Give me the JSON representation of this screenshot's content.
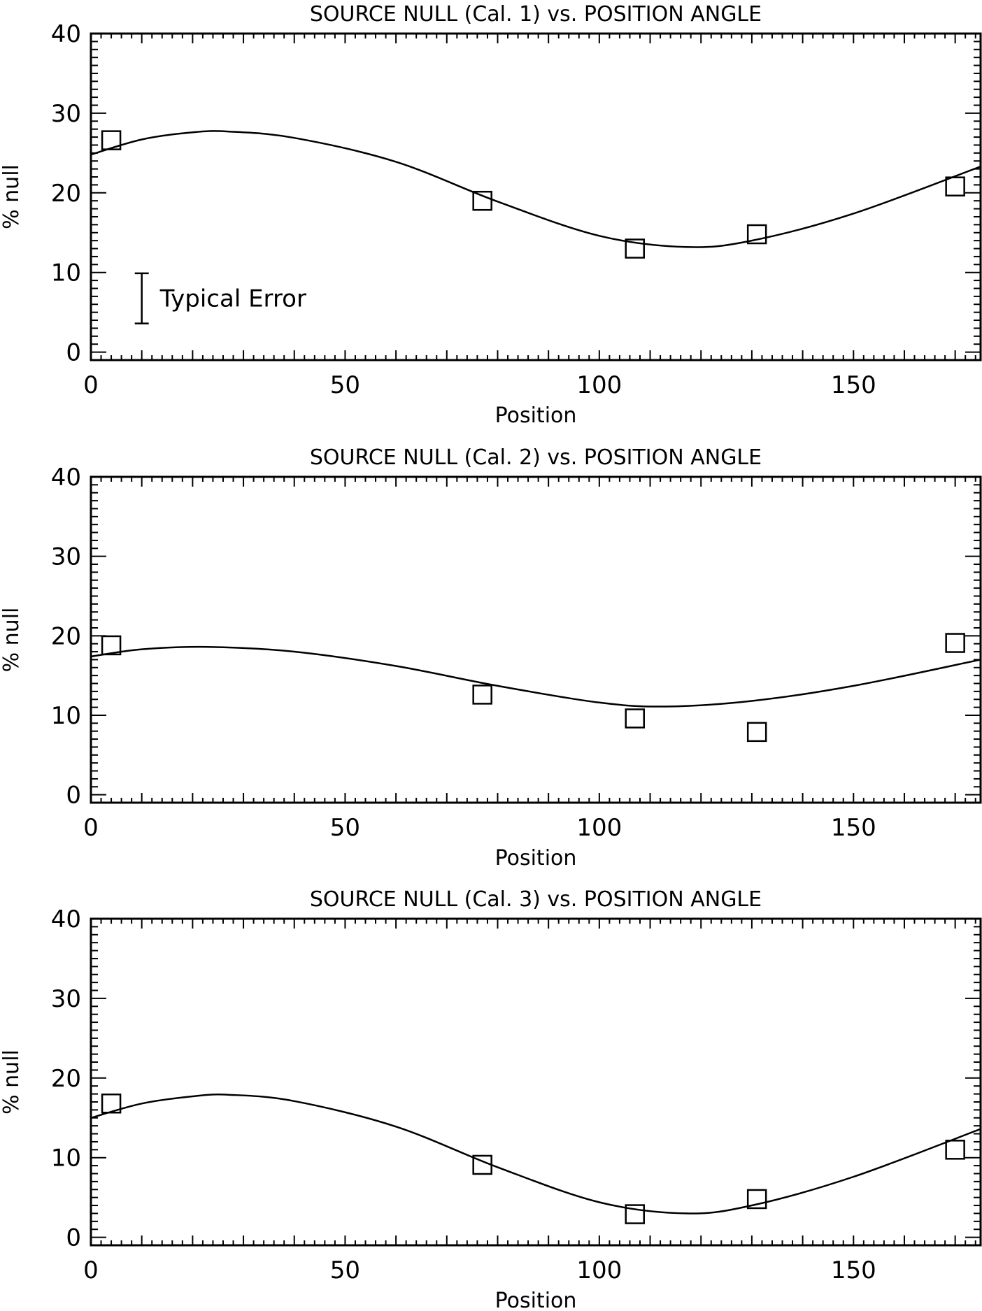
{
  "chart_data": [
    {
      "type": "scatter",
      "title": "SOURCE NULL (Cal. 1) vs. POSITION ANGLE",
      "xlabel": "Position",
      "ylabel": "% null",
      "xlim": [
        0,
        175
      ],
      "ylim": [
        -1,
        40
      ],
      "xticks": [
        0,
        50,
        100,
        150
      ],
      "xtick_labels": [
        "0",
        "50",
        "100",
        "150"
      ],
      "yticks": [
        0,
        10,
        20,
        30,
        40
      ],
      "ytick_labels": [
        "0",
        "10",
        "20",
        "30",
        "40"
      ],
      "series": [
        {
          "kind": "points",
          "marker": "open-square",
          "x": [
            4,
            77,
            107,
            131,
            170
          ],
          "y": [
            26.6,
            19.0,
            13.0,
            14.8,
            20.8
          ]
        },
        {
          "kind": "fit-curve",
          "x": [
            0,
            10,
            20,
            27,
            40,
            60,
            80,
            100,
            117,
            130,
            150,
            175
          ],
          "y": [
            24.8,
            26.7,
            27.6,
            27.7,
            26.9,
            23.9,
            18.9,
            14.6,
            13.2,
            14.0,
            17.4,
            23.3
          ]
        }
      ],
      "annotations": [
        {
          "text": "Typical Error",
          "kind": "error-bar",
          "x": 10,
          "ylow": 3.6,
          "yhigh": 9.9
        }
      ]
    },
    {
      "type": "scatter",
      "title": "SOURCE NULL (Cal. 2) vs. POSITION ANGLE",
      "xlabel": "Position",
      "ylabel": "% null",
      "xlim": [
        0,
        175
      ],
      "ylim": [
        -1,
        40
      ],
      "xticks": [
        0,
        50,
        100,
        150
      ],
      "xtick_labels": [
        "0",
        "50",
        "100",
        "150"
      ],
      "yticks": [
        0,
        10,
        20,
        30,
        40
      ],
      "ytick_labels": [
        "0",
        "10",
        "20",
        "30",
        "40"
      ],
      "series": [
        {
          "kind": "points",
          "marker": "open-square",
          "x": [
            4,
            77,
            107,
            131,
            170
          ],
          "y": [
            18.8,
            12.6,
            9.6,
            7.9,
            19.1
          ]
        },
        {
          "kind": "fit-curve",
          "x": [
            0,
            10,
            23,
            40,
            60,
            80,
            100,
            113,
            130,
            150,
            175
          ],
          "y": [
            17.4,
            18.3,
            18.6,
            18.0,
            16.2,
            13.7,
            11.6,
            11.1,
            11.8,
            13.7,
            17.0
          ]
        }
      ],
      "annotations": []
    },
    {
      "type": "scatter",
      "title": "SOURCE NULL (Cal. 3) vs. POSITION ANGLE",
      "xlabel": "Position",
      "ylabel": "% null",
      "xlim": [
        0,
        175
      ],
      "ylim": [
        -1,
        40
      ],
      "xticks": [
        0,
        50,
        100,
        150
      ],
      "xtick_labels": [
        "0",
        "50",
        "100",
        "150"
      ],
      "yticks": [
        0,
        10,
        20,
        30,
        40
      ],
      "ytick_labels": [
        "0",
        "10",
        "20",
        "30",
        "40"
      ],
      "series": [
        {
          "kind": "points",
          "marker": "open-square",
          "x": [
            4,
            77,
            107,
            131,
            170
          ],
          "y": [
            16.8,
            9.1,
            2.9,
            4.8,
            11.0
          ]
        },
        {
          "kind": "fit-curve",
          "x": [
            0,
            10,
            20,
            27,
            40,
            60,
            80,
            100,
            117,
            130,
            150,
            175
          ],
          "y": [
            15.0,
            16.8,
            17.7,
            17.9,
            17.1,
            13.9,
            8.8,
            4.4,
            3.0,
            4.0,
            7.6,
            13.6
          ]
        }
      ],
      "annotations": []
    }
  ]
}
